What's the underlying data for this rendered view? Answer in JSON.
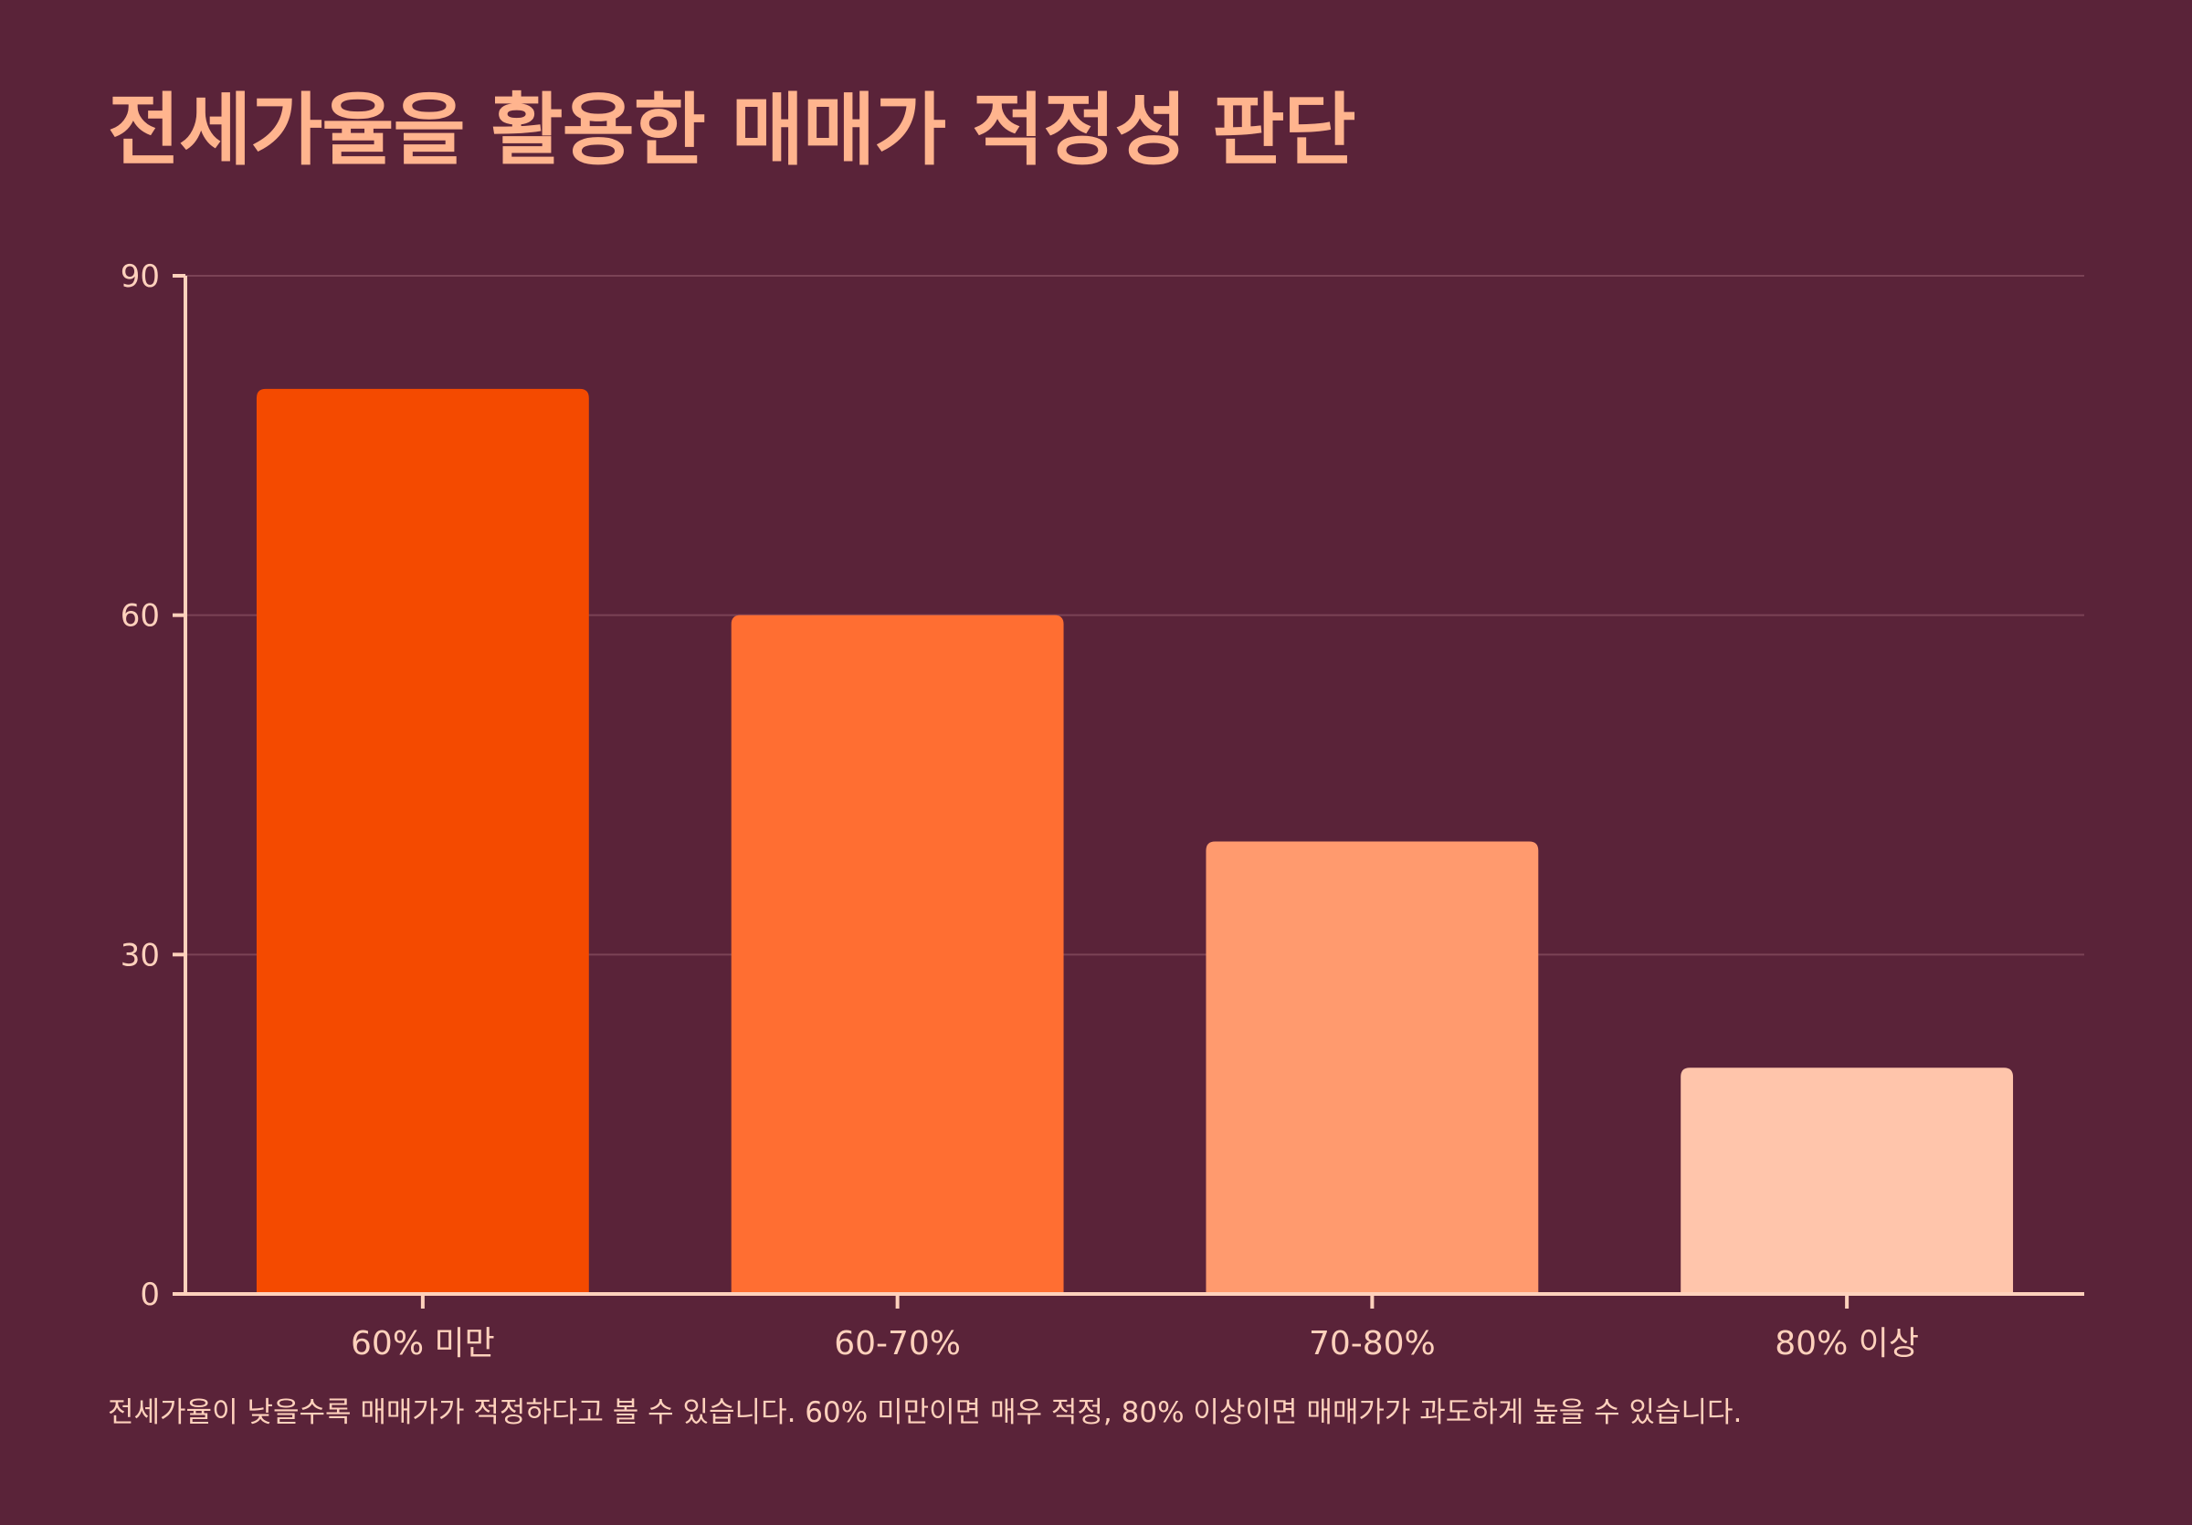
{
  "title": "전세가율을 활용한 매매가 적정성 판단",
  "caption": "전세가율이 낮을수록 매매가가 적정하다고 볼 수 있습니다. 60% 미만이면 매우 적정, 80% 이상이면 매매가가 과도하게 높을 수 있습니다.",
  "chart_data": {
    "type": "bar",
    "title": "전세가율을 활용한 매매가 적정성 판단",
    "xlabel": "",
    "ylabel": "",
    "categories": [
      "60% 미만",
      "60-70%",
      "70-80%",
      "80% 이상"
    ],
    "values": [
      80,
      60,
      40,
      20
    ],
    "ylim": [
      0,
      90
    ],
    "yticks": [
      0,
      30,
      60,
      90
    ],
    "grid": true,
    "colors": [
      "#f44a00",
      "#ff6e32",
      "#ff9a6e",
      "#ffc5ab"
    ]
  },
  "colors": {
    "background": "#5a2339",
    "title": "#ffb48e",
    "axis": "#ffd1bc",
    "text": "#ffd1bc",
    "grid": "#7b4356"
  }
}
